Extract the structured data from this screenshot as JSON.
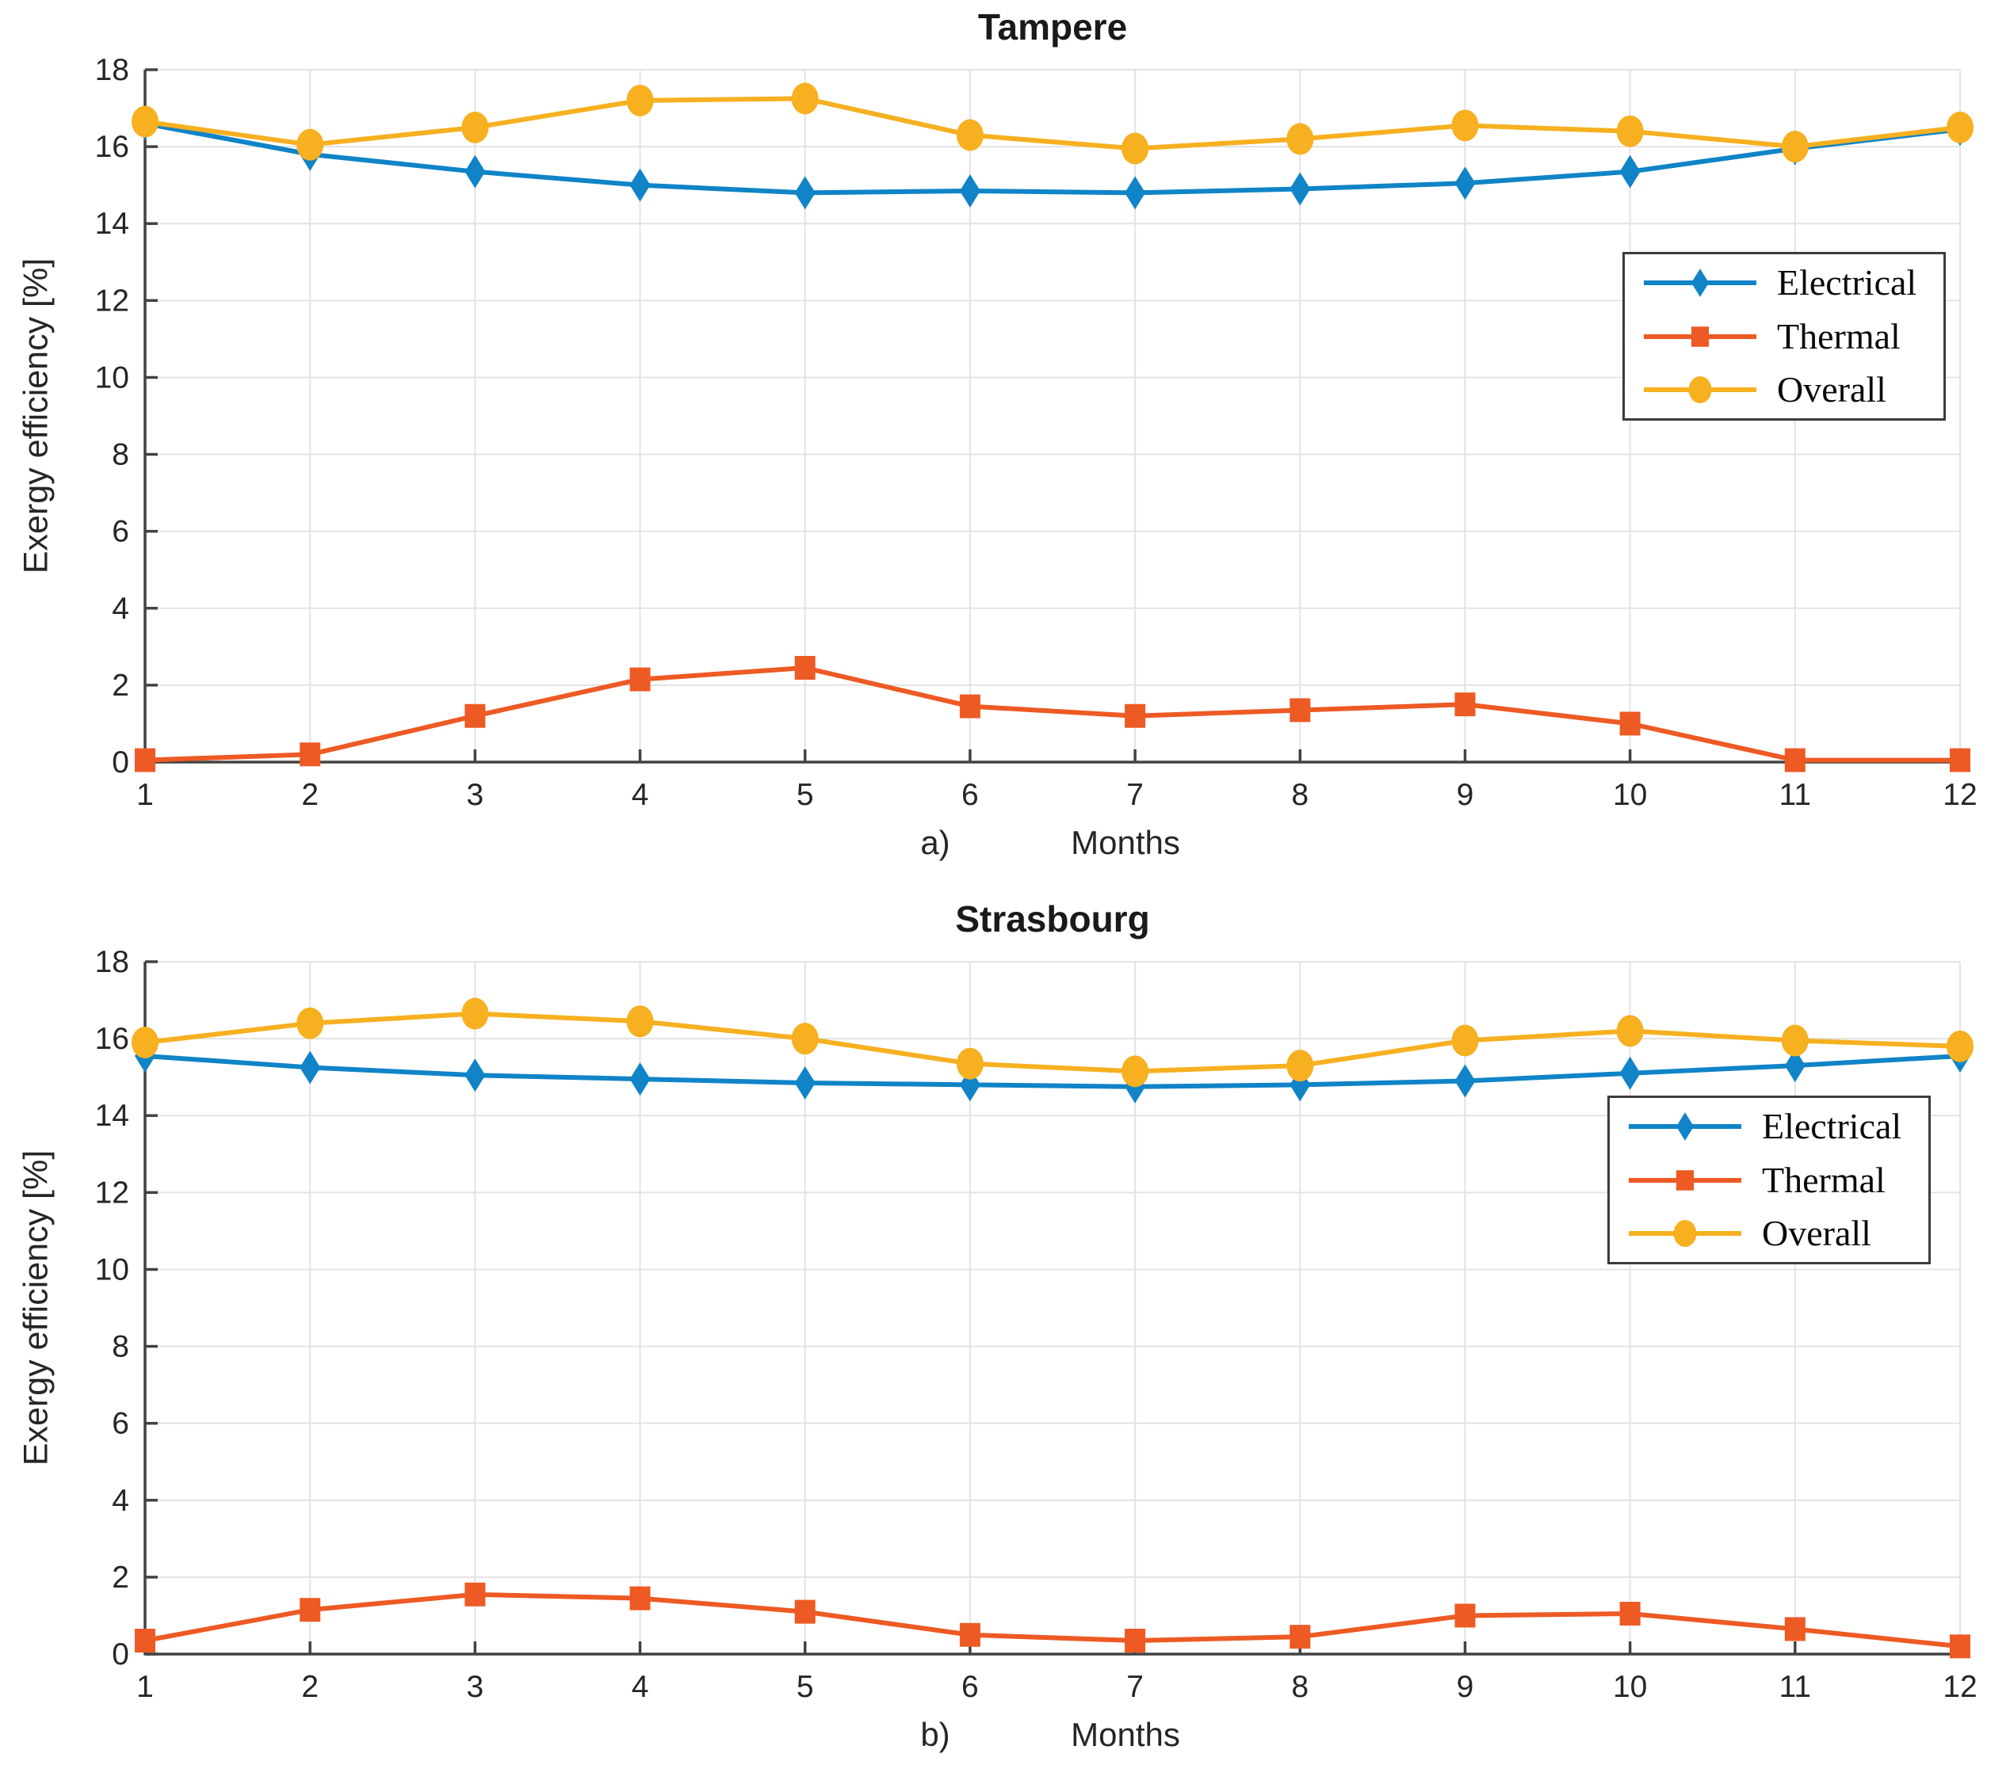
{
  "page": {
    "background": "#ffffff"
  },
  "chart_data": [
    {
      "type": "line",
      "title": "Tampere",
      "sublabel": "a)",
      "xlabel": "Months",
      "ylabel": "Exergy efficiency [%]",
      "x": [
        1,
        2,
        3,
        4,
        5,
        6,
        7,
        8,
        9,
        10,
        11,
        12
      ],
      "xlim": [
        1,
        12
      ],
      "ylim": [
        0,
        18
      ],
      "xticks": [
        1,
        2,
        3,
        4,
        5,
        6,
        7,
        8,
        9,
        10,
        11,
        12
      ],
      "yticks": [
        0,
        2,
        4,
        6,
        8,
        10,
        12,
        14,
        16,
        18
      ],
      "grid": true,
      "legend_position": "inside-right",
      "axis_color": "#424242",
      "grid_color": "#e3e3e3",
      "tick_label_color": "#262626",
      "series": [
        {
          "name": "Electrical",
          "marker": "diamond",
          "color": "#1084C7",
          "values": [
            16.6,
            15.8,
            15.35,
            15.0,
            14.8,
            14.85,
            14.8,
            14.9,
            15.05,
            15.35,
            15.95,
            16.45
          ]
        },
        {
          "name": "Thermal",
          "marker": "square",
          "color": "#ED5A24",
          "values": [
            0.05,
            0.2,
            1.2,
            2.15,
            2.45,
            1.45,
            1.2,
            1.35,
            1.5,
            1.0,
            0.05,
            0.05
          ]
        },
        {
          "name": "Overall",
          "marker": "circle",
          "color": "#F6B020",
          "values": [
            16.65,
            16.05,
            16.5,
            17.2,
            17.25,
            16.3,
            15.95,
            16.2,
            16.55,
            16.4,
            16.0,
            16.5
          ]
        }
      ]
    },
    {
      "type": "line",
      "title": "Strasbourg",
      "sublabel": "b)",
      "xlabel": "Months",
      "ylabel": "Exergy efficiency [%]",
      "x": [
        1,
        2,
        3,
        4,
        5,
        6,
        7,
        8,
        9,
        10,
        11,
        12
      ],
      "xlim": [
        1,
        12
      ],
      "ylim": [
        0,
        18
      ],
      "xticks": [
        1,
        2,
        3,
        4,
        5,
        6,
        7,
        8,
        9,
        10,
        11,
        12
      ],
      "yticks": [
        0,
        2,
        4,
        6,
        8,
        10,
        12,
        14,
        16,
        18
      ],
      "grid": true,
      "legend_position": "inside-right",
      "axis_color": "#424242",
      "grid_color": "#e3e3e3",
      "tick_label_color": "#262626",
      "series": [
        {
          "name": "Electrical",
          "marker": "diamond",
          "color": "#1084C7",
          "values": [
            15.55,
            15.25,
            15.05,
            14.95,
            14.85,
            14.8,
            14.75,
            14.8,
            14.9,
            15.1,
            15.3,
            15.55
          ]
        },
        {
          "name": "Thermal",
          "marker": "square",
          "color": "#ED5A24",
          "values": [
            0.35,
            1.15,
            1.55,
            1.45,
            1.1,
            0.5,
            0.35,
            0.45,
            1.0,
            1.05,
            0.65,
            0.2
          ]
        },
        {
          "name": "Overall",
          "marker": "circle",
          "color": "#F6B020",
          "values": [
            15.9,
            16.4,
            16.65,
            16.45,
            16.0,
            15.35,
            15.15,
            15.3,
            15.95,
            16.2,
            15.95,
            15.8
          ]
        }
      ]
    }
  ]
}
